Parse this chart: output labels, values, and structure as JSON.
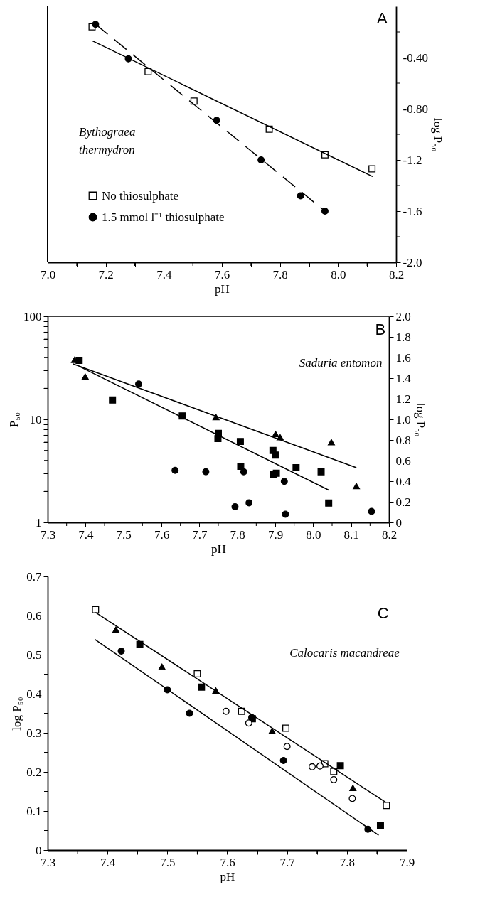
{
  "chart_data": [
    {
      "type": "scatter",
      "xlabel": "pH",
      "y2label": "log P₅₀",
      "annotations": [
        "A",
        "Bythograea thermydron"
      ],
      "legend": "bottom left",
      "grid": false,
      "xlim": [
        7.0,
        8.2
      ],
      "xticks": [
        {
          "value": 7.0,
          "label": "7.0"
        },
        {
          "value": 7.1,
          "label": null
        },
        7.2,
        {
          "value": 7.3,
          "label": null
        },
        7.4,
        {
          "value": 7.5,
          "label": null
        },
        7.6,
        {
          "value": 7.7,
          "label": null
        },
        7.8,
        {
          "value": 7.9,
          "label": null
        },
        {
          "value": 8.0,
          "label": "8.0"
        },
        {
          "value": 8.1,
          "label": null
        },
        8.2
      ],
      "y2lim": [
        -2.0,
        0.0
      ],
      "y2ticks": [
        {
          "value": -0.2,
          "label": null
        },
        {
          "value": -0.4,
          "label": "-0.40"
        },
        {
          "value": -0.6,
          "label": null
        },
        {
          "value": -0.8,
          "label": "-0.80"
        },
        {
          "value": -1.0,
          "label": null
        },
        {
          "value": -1.2,
          "label": "-1.2"
        },
        {
          "value": -1.4,
          "label": null
        },
        {
          "value": -1.6,
          "label": "-1.6"
        },
        {
          "value": -1.8,
          "label": null
        },
        {
          "value": -2.0,
          "label": "-2.0"
        }
      ],
      "series": [
        {
          "name": "No thiosulphate",
          "axis": "y2",
          "marker": "square-open",
          "color": "#000000",
          "x": [
            7.153,
            7.346,
            7.504,
            7.763,
            7.955,
            8.117
          ],
          "values": [
            -0.16,
            -0.51,
            -0.74,
            -0.96,
            -1.16,
            -1.27
          ]
        },
        {
          "name": "1.5 mmol l⁻¹ thiosulphate",
          "axis": "y2",
          "marker": "circle",
          "color": "#000000",
          "x": [
            7.165,
            7.278,
            7.582,
            7.735,
            7.871,
            7.955
          ],
          "values": [
            -0.14,
            -0.41,
            -0.89,
            -1.2,
            -1.48,
            -1.6
          ]
        },
        {
          "type": "line",
          "axis": "y2",
          "marker": "none",
          "line_style": "solid",
          "color": "#000000",
          "x": [
            7.155,
            8.119
          ],
          "values": [
            -0.27,
            -1.33
          ]
        },
        {
          "type": "line",
          "axis": "y2",
          "marker": "none",
          "line_style": "dashed",
          "color": "#000000",
          "x": [
            7.165,
            7.955
          ],
          "values": [
            -0.14,
            -1.6
          ]
        }
      ]
    },
    {
      "type": "scatter",
      "xlabel": "pH",
      "ylabel": "P₅₀",
      "y2label": "log P₅₀",
      "annotations": [
        "B",
        "Saduria entomon"
      ],
      "legend": false,
      "grid": false,
      "log": "y",
      "xlim": [
        7.3,
        8.2
      ],
      "xticks": [
        7.3,
        {
          "value": 7.35,
          "label": null
        },
        7.4,
        {
          "value": 7.45,
          "label": null
        },
        7.5,
        {
          "value": 7.55,
          "label": null
        },
        7.6,
        {
          "value": 7.65,
          "label": null
        },
        7.7,
        {
          "value": 7.75,
          "label": null
        },
        7.8,
        {
          "value": 7.85,
          "label": null
        },
        7.9,
        {
          "value": 7.95,
          "label": null
        },
        {
          "value": 8.0,
          "label": "8.0"
        },
        {
          "value": 8.05,
          "label": null
        },
        8.1,
        {
          "value": 8.15,
          "label": null
        },
        8.2
      ],
      "ylim": [
        1,
        100
      ],
      "yticks": [
        1,
        {
          "value": 2,
          "label": null
        },
        {
          "value": 3,
          "label": null
        },
        {
          "value": 4,
          "label": null
        },
        {
          "value": 5,
          "label": null
        },
        {
          "value": 6,
          "label": null
        },
        {
          "value": 7,
          "label": null
        },
        {
          "value": 8,
          "label": null
        },
        {
          "value": 9,
          "label": null
        },
        10,
        {
          "value": 20,
          "label": null
        },
        {
          "value": 30,
          "label": null
        },
        {
          "value": 40,
          "label": null
        },
        {
          "value": 50,
          "label": null
        },
        {
          "value": 60,
          "label": null
        },
        {
          "value": 70,
          "label": null
        },
        {
          "value": 80,
          "label": null
        },
        {
          "value": 90,
          "label": null
        },
        100
      ],
      "y2lim": [
        0,
        2.0
      ],
      "y2ticks": [
        0,
        0.2,
        0.4,
        0.6,
        0.8,
        {
          "value": 1.0,
          "label": "1.0"
        },
        1.2,
        1.4,
        1.6,
        1.8,
        {
          "value": 2.0,
          "label": "2.0"
        }
      ],
      "series": [
        {
          "marker": "triangle",
          "color": "#000000",
          "x": [
            7.371,
            7.399,
            7.744,
            7.901,
            7.913,
            8.048,
            8.114
          ],
          "values": [
            37.8,
            26.0,
            10.5,
            7.2,
            6.7,
            6.0,
            2.25
          ]
        },
        {
          "marker": "square",
          "color": "#000000",
          "x": [
            7.383,
            7.471,
            7.655,
            7.75,
            7.749,
            7.808,
            7.894,
            7.9,
            7.809,
            7.955,
            7.896,
            7.903,
            8.021,
            8.041
          ],
          "values": [
            37.3,
            15.4,
            10.8,
            7.3,
            6.5,
            6.1,
            5.0,
            4.5,
            3.5,
            3.4,
            2.9,
            3.0,
            3.1,
            1.54
          ]
        },
        {
          "marker": "circle",
          "color": "#000000",
          "x": [
            7.54,
            7.636,
            7.717,
            7.817,
            7.924,
            7.794,
            7.831,
            7.927,
            8.154
          ],
          "values": [
            22.0,
            3.2,
            3.1,
            3.1,
            2.5,
            1.42,
            1.55,
            1.2,
            1.28
          ]
        },
        {
          "type": "line",
          "marker": "none",
          "line_style": "solid",
          "color": "#000000",
          "x": [
            7.367,
            8.114
          ],
          "values": [
            34.5,
            3.4
          ]
        },
        {
          "type": "line",
          "marker": "none",
          "line_style": "solid",
          "color": "#000000",
          "x": [
            7.383,
            8.041
          ],
          "values": [
            32.7,
            2.06
          ]
        }
      ]
    },
    {
      "type": "scatter",
      "xlabel": "pH",
      "ylabel": "log P₅₀",
      "annotations": [
        "C",
        "Calocaris macandreae"
      ],
      "legend": false,
      "grid": false,
      "xlim": [
        7.3,
        7.9
      ],
      "xticks": [
        7.3,
        {
          "value": 7.35,
          "label": null
        },
        7.4,
        {
          "value": 7.45,
          "label": null
        },
        7.5,
        {
          "value": 7.55,
          "label": null
        },
        7.6,
        {
          "value": 7.65,
          "label": null
        },
        7.7,
        {
          "value": 7.75,
          "label": null
        },
        7.8,
        {
          "value": 7.85,
          "label": null
        },
        7.9
      ],
      "ylim": [
        0,
        0.7
      ],
      "yticks": [
        0,
        {
          "value": 0.05,
          "label": null
        },
        0.1,
        {
          "value": 0.15,
          "label": null
        },
        0.2,
        {
          "value": 0.25,
          "label": null
        },
        0.3,
        {
          "value": 0.35,
          "label": null
        },
        0.4,
        {
          "value": 0.45,
          "label": null
        },
        0.5,
        {
          "value": 0.55,
          "label": null
        },
        0.6,
        {
          "value": 0.65,
          "label": null
        },
        0.7
      ],
      "series": [
        {
          "marker": "square-open",
          "color": "#000000",
          "x": [
            7.38,
            7.55,
            7.624,
            7.698,
            7.763,
            7.778,
            7.866
          ],
          "values": [
            0.615,
            0.451,
            0.355,
            0.312,
            0.221,
            0.201,
            0.114
          ]
        },
        {
          "marker": "triangle",
          "color": "#000000",
          "x": [
            7.414,
            7.491,
            7.581,
            7.675,
            7.81
          ],
          "values": [
            0.564,
            0.469,
            0.408,
            0.305,
            0.159
          ]
        },
        {
          "marker": "square",
          "color": "#000000",
          "x": [
            7.454,
            7.557,
            7.642,
            7.789,
            7.856
          ],
          "values": [
            0.526,
            0.417,
            0.336,
            0.216,
            0.062
          ]
        },
        {
          "marker": "circle",
          "color": "#000000",
          "x": [
            7.423,
            7.5,
            7.537,
            7.641,
            7.694,
            7.835
          ],
          "values": [
            0.509,
            0.41,
            0.35,
            0.339,
            0.229,
            0.053
          ]
        },
        {
          "marker": "circle-open",
          "color": "#000000",
          "x": [
            7.598,
            7.636,
            7.7,
            7.742,
            7.755,
            7.778,
            7.809
          ],
          "values": [
            0.355,
            0.325,
            0.265,
            0.213,
            0.215,
            0.18,
            0.132
          ]
        },
        {
          "type": "line",
          "marker": "none",
          "line_style": "solid",
          "color": "#000000",
          "x": [
            7.38,
            7.865
          ],
          "values": [
            0.608,
            0.122
          ]
        },
        {
          "type": "line",
          "marker": "none",
          "line_style": "solid",
          "color": "#000000",
          "x": [
            7.379,
            7.853
          ],
          "values": [
            0.539,
            0.038
          ]
        }
      ]
    }
  ]
}
